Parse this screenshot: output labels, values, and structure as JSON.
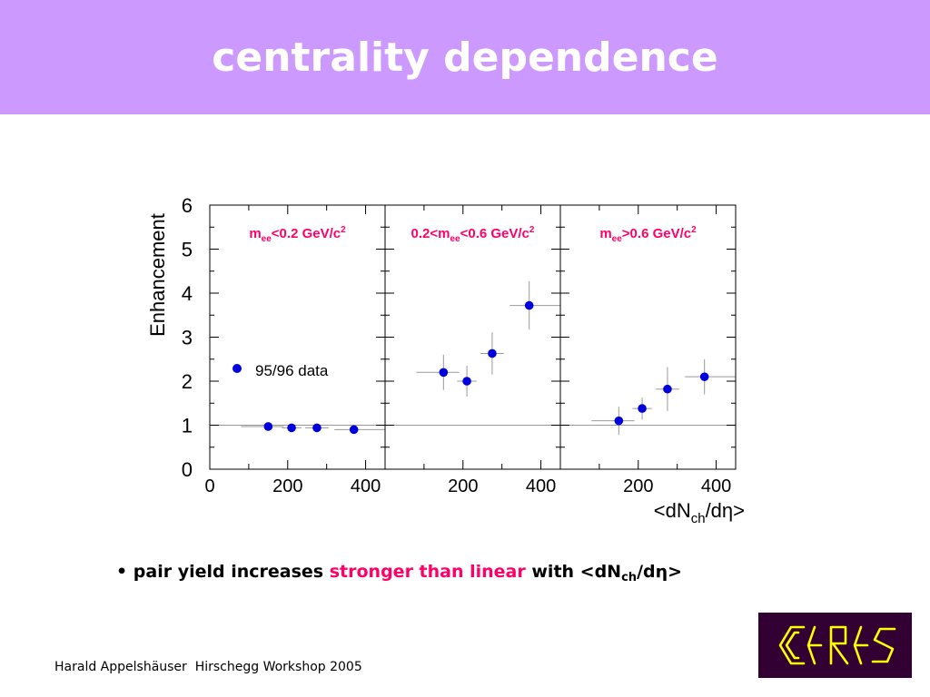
{
  "slide": {
    "title": "centrality dependence",
    "bullet": {
      "marker": "•",
      "before": "pair yield increases",
      "highlight": "stronger than linear",
      "after": "with <dN",
      "after_sub": "ch",
      "after_end": "/dη>"
    },
    "footer": {
      "author": "Harald Appelshäuser",
      "event": "Hirschegg Workshop 2005"
    },
    "logo": {
      "text": "CERES",
      "color": "#ffff00",
      "background": "#330033"
    }
  },
  "colors": {
    "header_bg": "#cc99ff",
    "title_text": "#ffffff",
    "highlight": "#ff0066",
    "marker": "#0000dd",
    "panel_label": "#ff0066"
  },
  "chart_data": {
    "type": "scatter",
    "ylabel": "Enhancement",
    "xlabel": {
      "main": "<dN",
      "sub": "ch",
      "end": "/dη>"
    },
    "ylim": [
      0,
      6
    ],
    "yticks": [
      "0",
      "1",
      "2",
      "3",
      "4",
      "5",
      "6"
    ],
    "xlim": [
      0,
      450
    ],
    "reference_line_y": 1,
    "legend": {
      "label": "95/96 data",
      "placement": "left, mid-height of first panel"
    },
    "panels": [
      {
        "label": {
          "pre": "m",
          "sub": "ee",
          "post": "<0.2 GeV/c",
          "sup": "2"
        },
        "xticks": [
          {
            "value": 0,
            "label": "0"
          },
          {
            "value": 200,
            "label": "200"
          },
          {
            "value": 400,
            "label": "400"
          }
        ],
        "points": [
          {
            "x": 150,
            "y": 0.97,
            "xerr": [
              70,
              40
            ],
            "yerr": 0.03
          },
          {
            "x": 210,
            "y": 0.94,
            "xerr": [
              25,
              25
            ],
            "yerr": 0.03
          },
          {
            "x": 275,
            "y": 0.94,
            "xerr": [
              30,
              30
            ],
            "yerr": 0.03
          },
          {
            "x": 370,
            "y": 0.9,
            "xerr": [
              50,
              80
            ],
            "yerr": 0.03
          }
        ]
      },
      {
        "label": {
          "pre": "0.2<m",
          "sub": "ee",
          "post": "<0.6 GeV/c",
          "sup": "2"
        },
        "xticks": [
          {
            "value": 200,
            "label": "200"
          },
          {
            "value": 400,
            "label": "400"
          }
        ],
        "points": [
          {
            "x": 150,
            "y": 2.2,
            "xerr": [
              70,
              40
            ],
            "yerr": 0.4
          },
          {
            "x": 210,
            "y": 2.0,
            "xerr": [
              25,
              25
            ],
            "yerr": 0.35
          },
          {
            "x": 275,
            "y": 2.63,
            "xerr": [
              30,
              30
            ],
            "yerr": 0.48
          },
          {
            "x": 370,
            "y": 3.72,
            "xerr": [
              50,
              80
            ],
            "yerr": 0.55
          }
        ]
      },
      {
        "label": {
          "pre": "m",
          "sub": "ee",
          "post": ">0.6 GeV/c",
          "sup": "2"
        },
        "xticks": [
          {
            "value": 200,
            "label": "200"
          },
          {
            "value": 400,
            "label": "400"
          }
        ],
        "points": [
          {
            "x": 150,
            "y": 1.1,
            "xerr": [
              70,
              40
            ],
            "yerr": 0.32
          },
          {
            "x": 210,
            "y": 1.38,
            "xerr": [
              25,
              25
            ],
            "yerr": 0.25
          },
          {
            "x": 275,
            "y": 1.82,
            "xerr": [
              30,
              30
            ],
            "yerr": 0.5
          },
          {
            "x": 370,
            "y": 2.1,
            "xerr": [
              50,
              80
            ],
            "yerr": 0.4
          }
        ]
      }
    ]
  }
}
